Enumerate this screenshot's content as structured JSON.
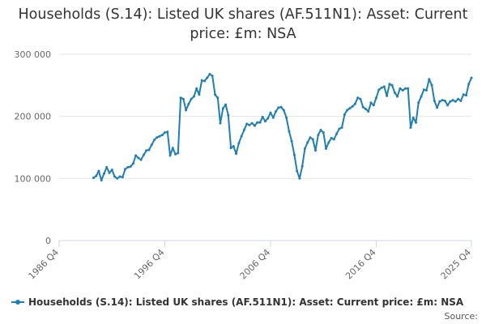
{
  "chart_data": {
    "type": "line",
    "title": "Households (S.14): Listed UK shares (AF.511N1): Asset: Current price: £m: NSA",
    "xlabel": "",
    "ylabel": "",
    "ylim": [
      0,
      300000
    ],
    "y_ticks": [
      0,
      100000,
      200000,
      300000
    ],
    "y_tick_labels": [
      "0",
      "100 000",
      "200 000",
      "300 000"
    ],
    "x_ticks": [
      1986.75,
      1996.75,
      2006.75,
      2016.75,
      2025.75
    ],
    "x_tick_labels": [
      "1986 Q4",
      "1996 Q4",
      "2006 Q4",
      "2016 Q4",
      "2025 Q4"
    ],
    "xlim": [
      1986.75,
      2025.75
    ],
    "grid": "horizontal",
    "legend_position": "bottom-left",
    "series": [
      {
        "name": "Households (S.14): Listed UK shares (AF.511N1): Asset: Current price: £m: NSA",
        "color": "#1f7fb5",
        "x": [
          1990.0,
          1990.25,
          1990.5,
          1990.75,
          1991.0,
          1991.25,
          1991.5,
          1991.75,
          1992.0,
          1992.25,
          1992.5,
          1992.75,
          1993.0,
          1993.25,
          1993.5,
          1993.75,
          1994.0,
          1994.25,
          1994.5,
          1994.75,
          1995.0,
          1995.25,
          1995.5,
          1995.75,
          1996.0,
          1996.25,
          1996.5,
          1996.75,
          1997.0,
          1997.25,
          1997.5,
          1997.75,
          1998.0,
          1998.25,
          1998.5,
          1998.75,
          1999.0,
          1999.25,
          1999.5,
          1999.75,
          2000.0,
          2000.25,
          2000.5,
          2000.75,
          2001.0,
          2001.25,
          2001.5,
          2001.75,
          2002.0,
          2002.25,
          2002.5,
          2002.75,
          2003.0,
          2003.25,
          2003.5,
          2003.75,
          2004.0,
          2004.25,
          2004.5,
          2004.75,
          2005.0,
          2005.25,
          2005.5,
          2005.75,
          2006.0,
          2006.25,
          2006.5,
          2006.75,
          2007.0,
          2007.25,
          2007.5,
          2007.75,
          2008.0,
          2008.25,
          2008.5,
          2008.75,
          2009.0,
          2009.25,
          2009.5,
          2009.75,
          2010.0,
          2010.25,
          2010.5,
          2010.75,
          2011.0,
          2011.25,
          2011.5,
          2011.75,
          2012.0,
          2012.25,
          2012.5,
          2012.75,
          2013.0,
          2013.25,
          2013.5,
          2013.75,
          2014.0,
          2014.25,
          2014.5,
          2014.75,
          2015.0,
          2015.25,
          2015.5,
          2015.75,
          2016.0,
          2016.25,
          2016.5,
          2016.75,
          2017.0,
          2017.25,
          2017.5,
          2017.75,
          2018.0,
          2018.25,
          2018.5,
          2018.75,
          2019.0,
          2019.25,
          2019.5,
          2019.75,
          2020.0,
          2020.25,
          2020.5,
          2020.75,
          2021.0,
          2021.25,
          2021.5,
          2021.75,
          2022.0,
          2022.25,
          2022.5,
          2022.75,
          2023.0,
          2023.25,
          2023.5,
          2023.75,
          2024.0,
          2024.25,
          2024.5,
          2024.75,
          2025.0,
          2025.25,
          2025.5,
          2025.75
        ],
        "values": [
          101000,
          104000,
          112000,
          97000,
          108000,
          118000,
          109000,
          114000,
          103000,
          100000,
          103000,
          102000,
          115000,
          118000,
          119000,
          124000,
          137000,
          133000,
          130000,
          138000,
          145000,
          146000,
          154000,
          162000,
          166000,
          168000,
          170000,
          174000,
          175000,
          137000,
          149000,
          139000,
          141000,
          230000,
          228000,
          210000,
          220000,
          228000,
          232000,
          245000,
          235000,
          258000,
          257000,
          262000,
          268000,
          265000,
          235000,
          230000,
          189000,
          213000,
          219000,
          202000,
          149000,
          152000,
          140000,
          157000,
          168000,
          178000,
          188000,
          186000,
          189000,
          185000,
          190000,
          190000,
          199000,
          192000,
          197000,
          206000,
          198000,
          208000,
          214000,
          215000,
          210000,
          198000,
          176000,
          160000,
          138000,
          112000,
          100000,
          120000,
          148000,
          158000,
          166000,
          163000,
          145000,
          170000,
          178000,
          174000,
          148000,
          158000,
          165000,
          163000,
          172000,
          180000,
          182000,
          203000,
          210000,
          213000,
          216000,
          220000,
          230000,
          228000,
          215000,
          212000,
          208000,
          222000,
          218000,
          230000,
          243000,
          246000,
          248000,
          233000,
          252000,
          250000,
          238000,
          232000,
          245000,
          242000,
          245000,
          245000,
          182000,
          198000,
          190000,
          222000,
          232000,
          243000,
          242000,
          260000,
          250000,
          225000,
          214000,
          224000,
          226000,
          225000,
          218000,
          224000,
          226000,
          224000,
          228000,
          225000,
          235000,
          234000,
          252000,
          262000
        ]
      }
    ]
  },
  "source_label": "Source:"
}
